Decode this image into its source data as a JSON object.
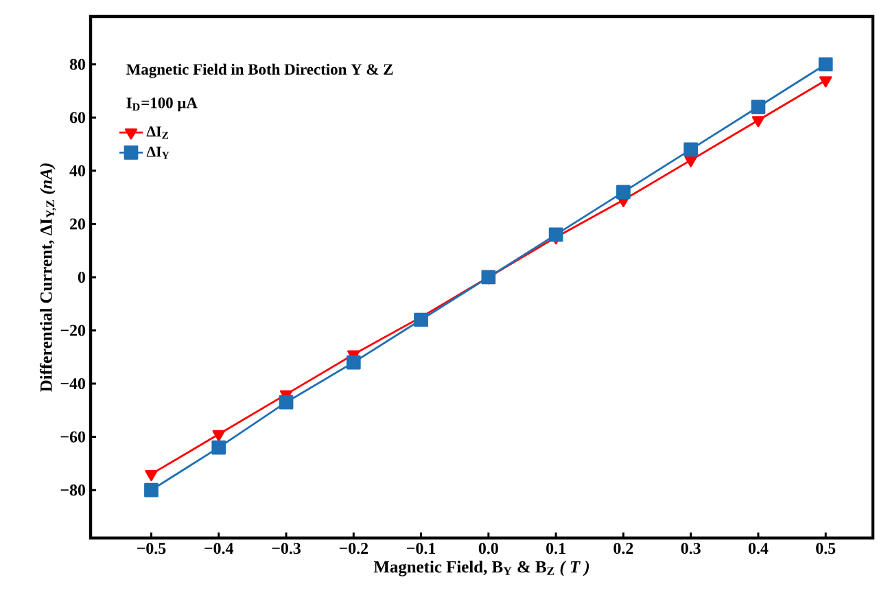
{
  "chart_data": {
    "type": "line",
    "xlabel": "Magnetic Field, B$_{Y}$ & B$_{Z}$ *( T )*",
    "ylabel": "Differential Current, ΔI$_{Y,Z}$ *(nA)*",
    "annotations": [
      "Magnetic Field in Both Direction Y & Z",
      "I$_{D}$=100 μA"
    ],
    "x": [
      -0.5,
      -0.4,
      -0.3,
      -0.2,
      -0.1,
      0.0,
      0.1,
      0.2,
      0.3,
      0.4,
      0.5
    ],
    "series": [
      {
        "name": "ΔI$_{Z}$",
        "color": "#ff0000",
        "marker": "triangle",
        "values": [
          -74,
          -59,
          -44,
          -29,
          -15,
          0,
          15,
          29,
          44,
          59,
          74
        ]
      },
      {
        "name": "ΔI$_{Y}$",
        "color": "#1f6fb4",
        "marker": "square",
        "values": [
          -80,
          -64,
          -47,
          -32,
          -16,
          0,
          16,
          32,
          48,
          64,
          80
        ]
      }
    ],
    "xlim": [
      -0.59,
      0.57
    ],
    "ylim": [
      -98,
      98
    ],
    "xticks": [
      {
        "value": -0.5,
        "label": "−0.5"
      },
      {
        "value": -0.4,
        "label": "−0.4"
      },
      {
        "value": -0.3,
        "label": "−0.3"
      },
      {
        "value": -0.2,
        "label": "−0.2"
      },
      {
        "value": -0.1,
        "label": "−0.1"
      },
      {
        "value": 0.0,
        "label": "0.0"
      },
      {
        "value": 0.1,
        "label": "0.1"
      },
      {
        "value": 0.2,
        "label": "0.2"
      },
      {
        "value": 0.3,
        "label": "0.3"
      },
      {
        "value": 0.4,
        "label": "0.4"
      },
      {
        "value": 0.5,
        "label": "0.5"
      }
    ],
    "yticks": [
      {
        "value": -80,
        "label": "−80"
      },
      {
        "value": -60,
        "label": "−60"
      },
      {
        "value": -40,
        "label": "−40"
      },
      {
        "value": -20,
        "label": "−20"
      },
      0,
      20,
      40,
      60,
      80
    ],
    "legend": "top left",
    "grid": false,
    "line_style": "solid"
  }
}
